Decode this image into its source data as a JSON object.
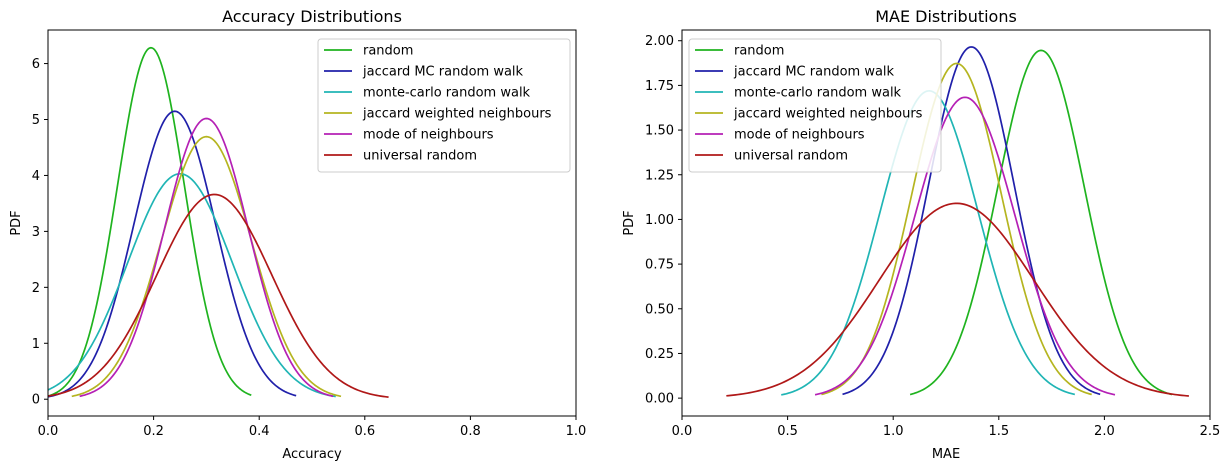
{
  "chart_data": [
    {
      "type": "line",
      "title": "Accuracy Distributions",
      "xlabel": "Accuracy",
      "ylabel": "PDF",
      "xlim": [
        0.0,
        1.0
      ],
      "ylim": [
        -0.3,
        6.6
      ],
      "xticks": [
        "0.0",
        "0.2",
        "0.4",
        "0.6",
        "0.8",
        "1.0"
      ],
      "yticks": [
        "0",
        "1",
        "2",
        "3",
        "4",
        "5",
        "6"
      ],
      "legend_position": "top-right",
      "series": [
        {
          "name": "random",
          "color": "#1fb31f",
          "mean": 0.195,
          "std": 0.0635,
          "range": [
            0.0,
            0.385
          ]
        },
        {
          "name": "jaccard MC random walk",
          "color": "#2020aa",
          "mean": 0.24,
          "std": 0.0775,
          "range": [
            0.0,
            0.47
          ]
        },
        {
          "name": "monte-carlo random walk",
          "color": "#20b5b5",
          "mean": 0.25,
          "std": 0.099,
          "range": [
            0.0,
            0.545
          ]
        },
        {
          "name": "jaccard weighted neighbours",
          "color": "#b5b520",
          "mean": 0.3,
          "std": 0.085,
          "range": [
            0.045,
            0.555
          ]
        },
        {
          "name": "mode of neighbours",
          "color": "#b520b5",
          "mean": 0.3,
          "std": 0.0795,
          "range": [
            0.06,
            0.54
          ]
        },
        {
          "name": "universal random",
          "color": "#b01818",
          "mean": 0.315,
          "std": 0.109,
          "range": [
            0.0,
            0.645
          ]
        }
      ]
    },
    {
      "type": "line",
      "title": "MAE Distributions",
      "xlabel": "MAE",
      "ylabel": "PDF",
      "xlim": [
        0.0,
        2.5
      ],
      "ylim": [
        -0.1,
        2.06
      ],
      "xticks": [
        "0.0",
        "0.5",
        "1.0",
        "1.5",
        "2.0",
        "2.5"
      ],
      "yticks": [
        "0.00",
        "0.25",
        "0.50",
        "0.75",
        "1.00",
        "1.25",
        "1.50",
        "1.75",
        "2.00"
      ],
      "legend_position": "top-left",
      "series": [
        {
          "name": "random",
          "color": "#1fb31f",
          "mean": 1.7,
          "std": 0.205,
          "range": [
            1.08,
            2.32
          ]
        },
        {
          "name": "jaccard MC random walk",
          "color": "#2020aa",
          "mean": 1.37,
          "std": 0.203,
          "range": [
            0.76,
            1.98
          ]
        },
        {
          "name": "monte-carlo random walk",
          "color": "#20b5b5",
          "mean": 1.17,
          "std": 0.232,
          "range": [
            0.47,
            1.86
          ]
        },
        {
          "name": "jaccard weighted neighbours",
          "color": "#b5b520",
          "mean": 1.3,
          "std": 0.213,
          "range": [
            0.66,
            1.94
          ]
        },
        {
          "name": "mode of neighbours",
          "color": "#b520b5",
          "mean": 1.34,
          "std": 0.237,
          "range": [
            0.63,
            2.05
          ]
        },
        {
          "name": "universal random",
          "color": "#b01818",
          "mean": 1.3,
          "std": 0.366,
          "range": [
            0.21,
            2.4
          ]
        }
      ]
    }
  ]
}
